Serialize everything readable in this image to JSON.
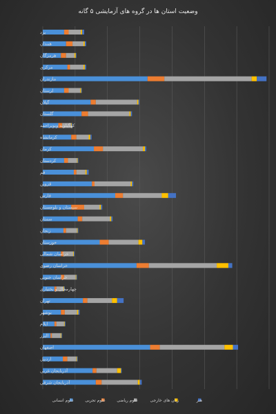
{
  "chart_data": {
    "type": "bar",
    "orientation": "horizontal",
    "stacked": true,
    "title": "وضعیت استان ها در گروه های آزمایشی ۵ گانه",
    "xlabel": "",
    "ylabel": "",
    "xlim": [
      0,
      3500
    ],
    "grid": true,
    "legend_position": "bottom",
    "categories": [
      "یزد",
      "همدان",
      "هرمزگان",
      "مرکزی",
      "مازندران",
      "لرستان",
      "گیلان",
      "گلستان",
      "کهگیلویه وبویراحمد",
      "کرمانشاه",
      "کرمان",
      "کردستان",
      "قم",
      "قزوین",
      "فارس",
      "سیستان و بلوچستان",
      "سمنان",
      "زنجان",
      "خوزستان",
      "خراسان شمالی",
      "خراسان رضوی",
      "خراسان جنوبی",
      "چهارمحال و بختیاری",
      "تهران",
      "بوشهر",
      "ایلام",
      "البرز",
      "اصفهان",
      "اردبیل",
      "آذربایجان غربی",
      "آذربایجان شرقی"
    ],
    "series": [
      {
        "name": "علوم انسانی",
        "color": "#4a90d9",
        "values": [
          330,
          360,
          280,
          380,
          1620,
          330,
          740,
          600,
          240,
          440,
          790,
          330,
          480,
          760,
          1120,
          440,
          540,
          320,
          880,
          280,
          1450,
          280,
          180,
          620,
          280,
          180,
          120,
          1660,
          310,
          770,
          820
        ]
      },
      {
        "name": "علوم تجربی",
        "color": "#ed7d31",
        "values": [
          70,
          100,
          80,
          40,
          260,
          70,
          80,
          100,
          60,
          80,
          140,
          60,
          40,
          40,
          120,
          200,
          70,
          40,
          140,
          40,
          190,
          50,
          30,
          70,
          60,
          30,
          20,
          150,
          70,
          60,
          90
        ]
      },
      {
        "name": "علوم ریاضی",
        "color": "#a5a5a5",
        "values": [
          190,
          170,
          130,
          210,
          1350,
          180,
          640,
          640,
          140,
          190,
          620,
          140,
          140,
          560,
          600,
          240,
          430,
          170,
          460,
          150,
          1050,
          180,
          110,
          380,
          190,
          120,
          140,
          1000,
          140,
          320,
          560
        ]
      },
      {
        "name": "زبان های خارجی",
        "color": "#ffc000",
        "values": [
          20,
          20,
          20,
          20,
          80,
          15,
          20,
          20,
          10,
          25,
          30,
          10,
          20,
          20,
          100,
          20,
          20,
          10,
          60,
          10,
          180,
          10,
          10,
          80,
          20,
          10,
          10,
          130,
          10,
          60,
          30
        ]
      },
      {
        "name": "هنر",
        "color": "#4472c4",
        "values": [
          30,
          20,
          10,
          20,
          150,
          10,
          15,
          20,
          10,
          20,
          20,
          10,
          30,
          20,
          120,
          20,
          20,
          10,
          40,
          10,
          60,
          10,
          10,
          100,
          20,
          10,
          10,
          80,
          10,
          10,
          30
        ]
      }
    ]
  }
}
